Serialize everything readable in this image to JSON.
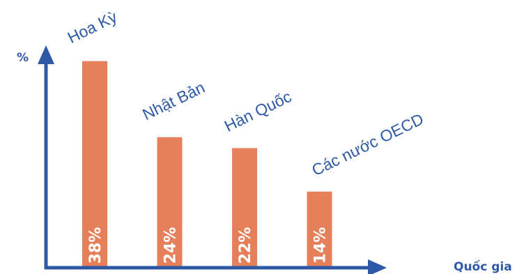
{
  "chart_data": {
    "type": "bar",
    "categories": [
      "Hoa Kỳ",
      "Nhật Bản",
      "Hàn Quốc",
      "Các nước OECD"
    ],
    "values": [
      38,
      24,
      22,
      14
    ],
    "value_labels": [
      "38%",
      "24%",
      "22%",
      "14%"
    ],
    "ylabel": "%",
    "xlabel": "Quốc gia",
    "ylim": [
      0,
      45
    ],
    "grid": false,
    "legend": "none",
    "colors": {
      "bar": "#e6805a",
      "axis": "#2d59a6",
      "text": "#2d59a6",
      "value_text": "#ffffff"
    }
  }
}
